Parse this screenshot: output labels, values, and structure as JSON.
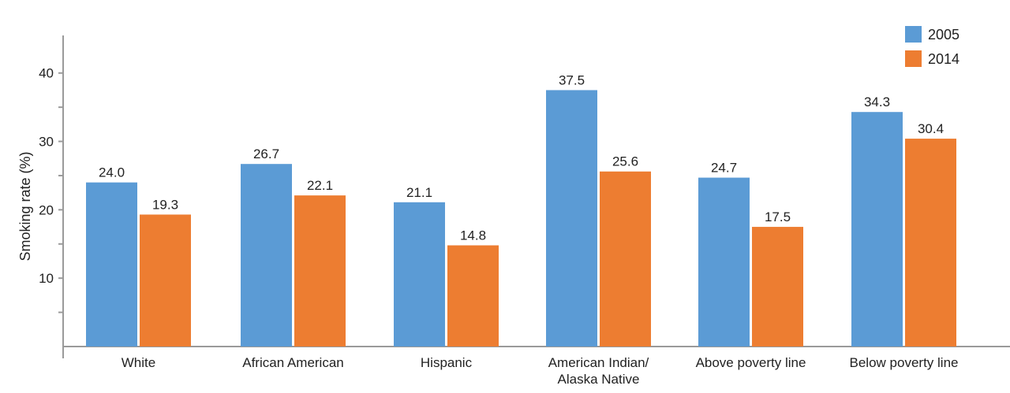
{
  "chart_data": {
    "type": "bar",
    "title": "",
    "xlabel": "",
    "ylabel": "Smoking rate (%)",
    "ylim": [
      0,
      44
    ],
    "yticks": [
      10,
      20,
      30,
      40
    ],
    "grid": false,
    "legend_position": "top-right",
    "categories": [
      [
        "White"
      ],
      [
        "African American"
      ],
      [
        "Hispanic"
      ],
      [
        "American Indian/",
        "Alaska Native"
      ],
      [
        "Above poverty line"
      ],
      [
        "Below poverty line"
      ]
    ],
    "series": [
      {
        "name": "2005",
        "color": "#5b9bd5",
        "values": [
          24.0,
          26.7,
          21.1,
          37.5,
          24.7,
          34.3
        ],
        "labels": [
          "24.0",
          "26.7",
          "21.1",
          "37.5",
          "24.7",
          "34.3"
        ]
      },
      {
        "name": "2014",
        "color": "#ed7d31",
        "values": [
          19.3,
          22.1,
          14.8,
          25.6,
          17.5,
          30.4
        ],
        "labels": [
          "19.3",
          "22.1",
          "14.8",
          "25.6",
          "17.5",
          "30.4"
        ]
      }
    ]
  }
}
